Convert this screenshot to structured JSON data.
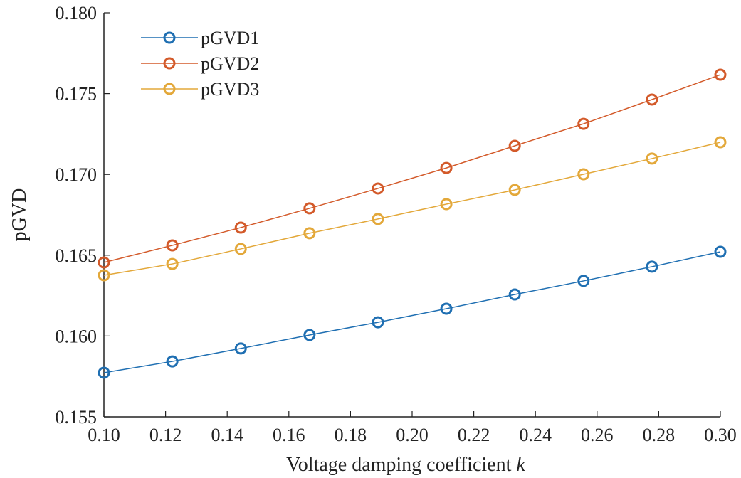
{
  "chart_data": {
    "type": "line",
    "title": "",
    "xlabel": "Voltage damping coefficient",
    "xlabel_var": "k",
    "ylabel": "pGVD",
    "xlim": [
      0.1,
      0.3
    ],
    "ylim": [
      0.155,
      0.18
    ],
    "xticks": [
      "0.10",
      "0.12",
      "0.14",
      "0.16",
      "0.18",
      "0.20",
      "0.22",
      "0.24",
      "0.26",
      "0.28",
      "0.30"
    ],
    "yticks": [
      "0.155",
      "0.160",
      "0.165",
      "0.170",
      "0.175",
      "0.180"
    ],
    "legend_position": "top-left",
    "x": [
      0.1,
      0.1222,
      0.1444,
      0.1667,
      0.1889,
      0.2111,
      0.2333,
      0.2556,
      0.2778,
      0.3
    ],
    "series": [
      {
        "name": "pGVD1",
        "color": "#1f6fb2",
        "values": [
          0.15773,
          0.15843,
          0.15923,
          0.16006,
          0.16085,
          0.16169,
          0.16257,
          0.16341,
          0.16429,
          0.16521
        ]
      },
      {
        "name": "pGVD2",
        "color": "#d35a2a",
        "values": [
          0.16455,
          0.16561,
          0.16671,
          0.1679,
          0.16913,
          0.1704,
          0.17177,
          0.17313,
          0.17463,
          0.17617
        ]
      },
      {
        "name": "pGVD3",
        "color": "#e3a83a",
        "values": [
          0.16376,
          0.16446,
          0.16539,
          0.16636,
          0.16724,
          0.16816,
          0.16904,
          0.17001,
          0.17098,
          0.17199
        ]
      }
    ]
  }
}
